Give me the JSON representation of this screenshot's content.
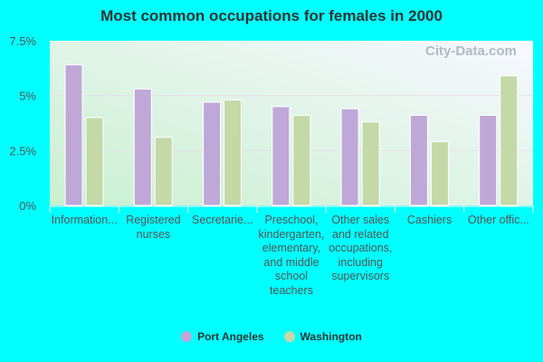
{
  "chart_data": {
    "type": "bar",
    "title": "Most common occupations for females in 2000",
    "categories": [
      "Information...",
      "Registered nurses",
      "Secretarie...",
      "Preschool, kindergarten, elementary, and middle school teachers",
      "Other sales and related occupations, including supervisors",
      "Cashiers",
      "Other offic..."
    ],
    "series": [
      {
        "name": "Port Angeles",
        "color": "#bfa8d8",
        "values": [
          6.4,
          5.3,
          4.7,
          4.5,
          4.4,
          4.1,
          4.1
        ]
      },
      {
        "name": "Washington",
        "color": "#c4d8a8",
        "values": [
          4.0,
          3.1,
          4.8,
          4.1,
          3.8,
          2.9,
          5.9
        ]
      }
    ],
    "yticks": [
      "0%",
      "2.5%",
      "5%",
      "7.5%"
    ],
    "ytick_values": [
      0,
      2.5,
      5,
      7.5
    ],
    "ylim": [
      0,
      7.5
    ],
    "grid": true,
    "legend": "bottom",
    "watermark": "City-Data.com"
  }
}
